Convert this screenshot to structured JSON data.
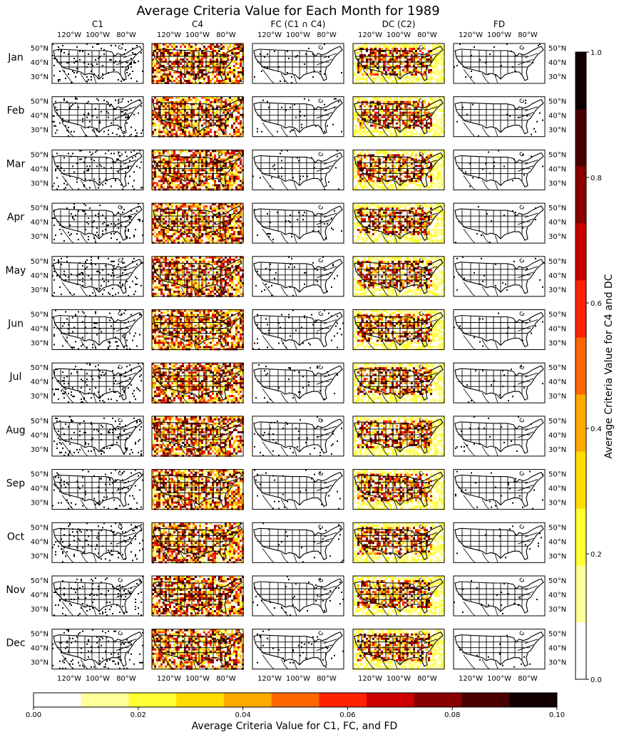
{
  "title": "Average Criteria Value for Each Month for 1989",
  "columns": [
    "C1",
    "C4",
    "FC (C1 ∩ C4)",
    "DC (C2)",
    "FD"
  ],
  "rows": [
    "Jan",
    "Feb",
    "Mar",
    "Apr",
    "May",
    "Jun",
    "Jul",
    "Aug",
    "Sep",
    "Oct",
    "Nov",
    "Dec"
  ],
  "lon_ticks": [
    "120°W",
    "100°W",
    "80°W"
  ],
  "lat_ticks": [
    "50°N",
    "40°N",
    "30°N"
  ],
  "colorbar_right": {
    "label": "Average Criteria Value for C4 and DC",
    "ticks": [
      "0.0",
      "0.2",
      "0.4",
      "0.6",
      "0.8",
      "1.0"
    ],
    "range": [
      0,
      1
    ]
  },
  "colorbar_bottom": {
    "label": "Average Criteria Value for C1, FC, and FD",
    "ticks": [
      "0.00",
      "0.02",
      "0.04",
      "0.06",
      "0.08",
      "0.10"
    ],
    "range": [
      0,
      0.1
    ]
  },
  "colormap": [
    "#ffffff",
    "#ffff99",
    "#ffff33",
    "#ffdd00",
    "#ffaa00",
    "#ff6600",
    "#ff2200",
    "#cc0000",
    "#880000",
    "#4a0000",
    "#120000"
  ],
  "map_extent": {
    "lon": [
      -130,
      -62
    ],
    "lat": [
      23,
      53
    ]
  },
  "column_density": [
    0.06,
    0.75,
    0.02,
    0.7,
    0.01
  ]
}
